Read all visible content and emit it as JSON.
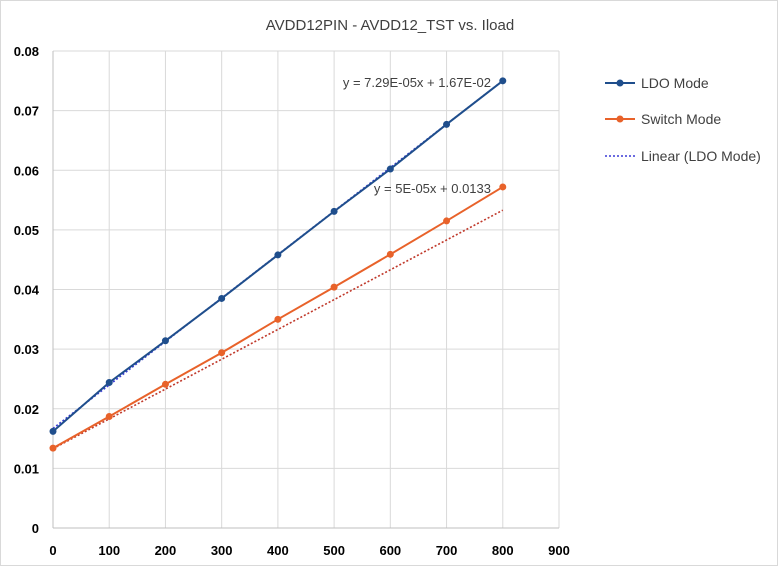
{
  "chart_data": {
    "type": "line",
    "title": "AVDD12PIN - AVDD12_TST vs. Iload",
    "xlabel": "",
    "ylabel": "",
    "xlim": [
      0,
      900
    ],
    "ylim": [
      0,
      0.08
    ],
    "xticks": [
      "0",
      "100",
      "200",
      "300",
      "400",
      "500",
      "600",
      "700",
      "800",
      "900"
    ],
    "yticks": [
      "0",
      "0.01",
      "0.02",
      "0.03",
      "0.04",
      "0.05",
      "0.06",
      "0.07",
      "0.08"
    ],
    "grid": true,
    "legend_position": "right",
    "x": [
      0,
      100,
      200,
      300,
      400,
      500,
      600,
      700,
      800
    ],
    "series": [
      {
        "name": "LDO Mode",
        "color": "#1f4e8c",
        "values": [
          0.0162,
          0.0244,
          0.0314,
          0.0385,
          0.0458,
          0.0531,
          0.0602,
          0.0677,
          0.075
        ]
      },
      {
        "name": "Switch Mode",
        "color": "#e8622a",
        "values": [
          0.0134,
          0.0187,
          0.0241,
          0.0294,
          0.035,
          0.0404,
          0.0459,
          0.0515,
          0.0572
        ]
      }
    ],
    "trendlines": [
      {
        "name": "Linear (LDO Mode)",
        "color": "#3a3ad6",
        "slope": 7.29e-05,
        "intercept": 0.0167,
        "equation": "y = 7.29E-05x + 1.67E-02",
        "in_legend": true
      },
      {
        "color": "#c0392b",
        "slope": 5e-05,
        "intercept": 0.0133,
        "equation": "y = 5E-05x + 0.0133",
        "in_legend": false
      }
    ]
  }
}
